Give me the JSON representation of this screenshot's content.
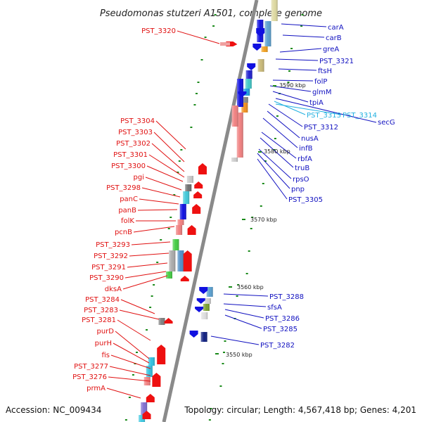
{
  "title": "Pseudomonas stutzeri A1501, complete genome",
  "accession": "Accession: NC_009434",
  "topology": "Topology: circular; Length: 4,567,418 bp; Genes: 4,201",
  "colors": {
    "left_labels": "#e01010",
    "right_labels": "#1010c0",
    "highlight_labels": "#22b0e0",
    "backbone": "#8a8a8a",
    "tick_marks": "#1a8a1a"
  },
  "kbp_markers": [
    "3590 kbp",
    "3580 kbp",
    "3570 kbp",
    "3560 kbp",
    "3550 kbp"
  ],
  "left_labels": [
    "PST_3320",
    "PST_3304",
    "PST_3303",
    "PST_3302",
    "PST_3301",
    "PST_3300",
    "pgi",
    "PST_3298",
    "panC",
    "panB",
    "folK",
    "pcnB",
    "PST_3293",
    "PST_3292",
    "PST_3291",
    "PST_3290",
    "dksA",
    "PST_3284",
    "PST_3283",
    "PST_3281",
    "purD",
    "purH",
    "fis",
    "PST_3277",
    "PST_3276",
    "prmA"
  ],
  "right_labels": [
    "carA",
    "carB",
    "greA",
    "PST_3321",
    "ftsH",
    "folP",
    "glmM",
    "tpiA",
    "PST_3313",
    "PST_3314",
    "secG",
    "PST_3312",
    "nusA",
    "infB",
    "rbfA",
    "truB",
    "rpsO",
    "pnp",
    "PST_3305",
    "PST_3288",
    "sfsA",
    "PST_3286",
    "PST_3285",
    "PST_3282"
  ]
}
